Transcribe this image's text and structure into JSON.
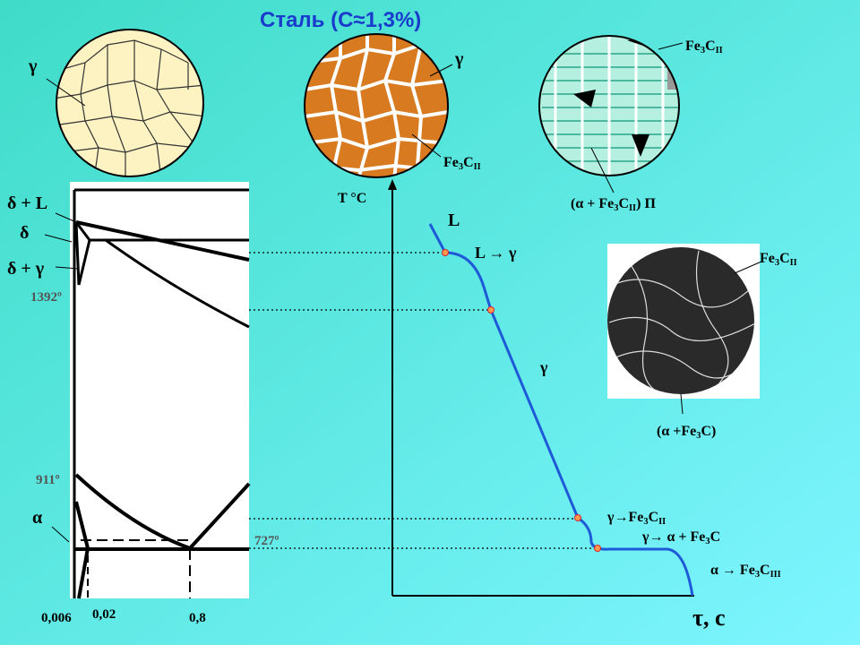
{
  "title": "Сталь (С≈1,3%)",
  "labels": [
    [
      "γ"
    ],
    [
      "γ"
    ],
    [
      "Fe",
      "3",
      "C",
      "II"
    ],
    [
      "Fe",
      "3",
      "C",
      "II"
    ],
    [
      "(α + Fe",
      "3",
      "C",
      "II",
      ") П"
    ],
    [
      "T °C"
    ],
    [
      "L"
    ],
    [
      "L → γ"
    ],
    [
      "γ"
    ],
    [
      "Fe",
      "3",
      "C",
      "II"
    ],
    [
      "(α +Fe",
      "3",
      "C)"
    ],
    [
      "γ→Fe",
      "3",
      "C",
      "II"
    ],
    [
      "γ→ α + Fe",
      "3",
      "C"
    ],
    [
      "α → Fe",
      "3",
      "C",
      "III"
    ],
    [
      "τ, с"
    ],
    [
      "δ + L"
    ],
    [
      "δ"
    ],
    [
      "δ + γ"
    ],
    [
      "1392º"
    ],
    [
      "911º"
    ],
    [
      "α"
    ],
    [
      "727º"
    ],
    [
      "0,006"
    ],
    [
      "0,02"
    ],
    [
      "0,8"
    ]
  ]
}
